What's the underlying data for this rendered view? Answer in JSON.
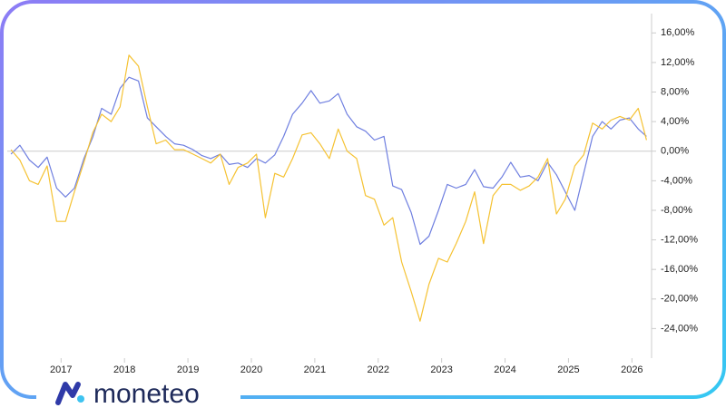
{
  "brand": "moneteo",
  "chart_data": {
    "type": "line",
    "x": [
      2016.21,
      2016.35,
      2016.5,
      2016.64,
      2016.78,
      2016.93,
      2017.07,
      2017.21,
      2017.36,
      2017.5,
      2017.64,
      2017.79,
      2017.93,
      2018.07,
      2018.22,
      2018.36,
      2018.5,
      2018.65,
      2018.79,
      2018.93,
      2019.08,
      2019.22,
      2019.36,
      2019.51,
      2019.65,
      2019.79,
      2019.94,
      2020.08,
      2020.22,
      2020.37,
      2020.51,
      2020.65,
      2020.8,
      2020.94,
      2021.08,
      2021.23,
      2021.37,
      2021.51,
      2021.66,
      2021.8,
      2021.94,
      2022.09,
      2022.23,
      2022.37,
      2022.52,
      2022.66,
      2022.8,
      2022.95,
      2023.09,
      2023.23,
      2023.38,
      2023.52,
      2023.66,
      2023.81,
      2023.95,
      2024.09,
      2024.24,
      2024.38,
      2024.52,
      2024.67,
      2024.81,
      2024.95,
      2025.1,
      2025.24,
      2025.38,
      2025.53,
      2025.67,
      2025.81,
      2025.96,
      2026.1,
      2026.23
    ],
    "series": [
      {
        "color": "#6f7fe0",
        "values": [
          -0.4,
          0.8,
          -1.2,
          -2.2,
          -0.8,
          -5,
          -6.2,
          -5,
          -1,
          1.9,
          5.8,
          5,
          8.5,
          10,
          9.5,
          4.5,
          3.3,
          2,
          1,
          0.8,
          0.2,
          -0.6,
          -1,
          -0.4,
          -1.8,
          -1.6,
          -2.2,
          -1,
          -1.6,
          -0.5,
          2,
          5,
          6.5,
          8.2,
          6.5,
          6.8,
          7.8,
          5,
          3.3,
          2.7,
          1.5,
          2,
          -4.7,
          -5.2,
          -8.3,
          -12.6,
          -11.5,
          -8,
          -4.5,
          -5,
          -4.5,
          -2.5,
          -4.8,
          -5,
          -3.5,
          -1.5,
          -3.5,
          -3.3,
          -4,
          -1.5,
          -3.2,
          -5.5,
          -8,
          -3,
          2,
          4,
          3,
          4.2,
          4.5,
          3,
          2
        ]
      },
      {
        "color": "#f5c232",
        "values": [
          0.2,
          -1.2,
          -4,
          -4.5,
          -2,
          -9.5,
          -9.5,
          -5.5,
          -1.5,
          2.5,
          5,
          4,
          6,
          13,
          11.5,
          6,
          1,
          1.5,
          0.2,
          0.2,
          -0.4,
          -1,
          -1.6,
          -0.4,
          -4.5,
          -2.2,
          -1.6,
          -0.4,
          -9,
          -3,
          -3.5,
          -1,
          2.2,
          2.5,
          1,
          -1,
          3,
          0,
          -1,
          -6,
          -6.5,
          -10,
          -9,
          -15,
          -19,
          -23,
          -18,
          -14.5,
          -15,
          -12.5,
          -9.5,
          -5.5,
          -12.5,
          -6,
          -4.5,
          -4.5,
          -5.3,
          -4.7,
          -3.5,
          -1,
          -8.5,
          -6.5,
          -2,
          -0.5,
          3.8,
          3,
          4.2,
          4.7,
          4.2,
          5.8,
          1.5
        ]
      }
    ],
    "xlim": [
      2016.08,
      2026.31
    ],
    "xticks": [
      2017,
      2018,
      2019,
      2020,
      2021,
      2022,
      2023,
      2024,
      2025,
      2026
    ],
    "ylim": [
      -28,
      18
    ],
    "yticks": [
      {
        "value": 16,
        "label": "16,00%"
      },
      {
        "value": 12,
        "label": "12,00%"
      },
      {
        "value": 8,
        "label": "8,00%"
      },
      {
        "value": 4,
        "label": "4,00%"
      },
      {
        "value": 0,
        "label": "0,00%"
      },
      {
        "value": -4,
        "label": "-4,00%"
      },
      {
        "value": -8,
        "label": "-8,00%"
      },
      {
        "value": -12,
        "label": "-12,00%"
      },
      {
        "value": -16,
        "label": "-16,00%"
      },
      {
        "value": -20,
        "label": "-20,00%"
      },
      {
        "value": -24,
        "label": "-24,00%"
      }
    ]
  }
}
